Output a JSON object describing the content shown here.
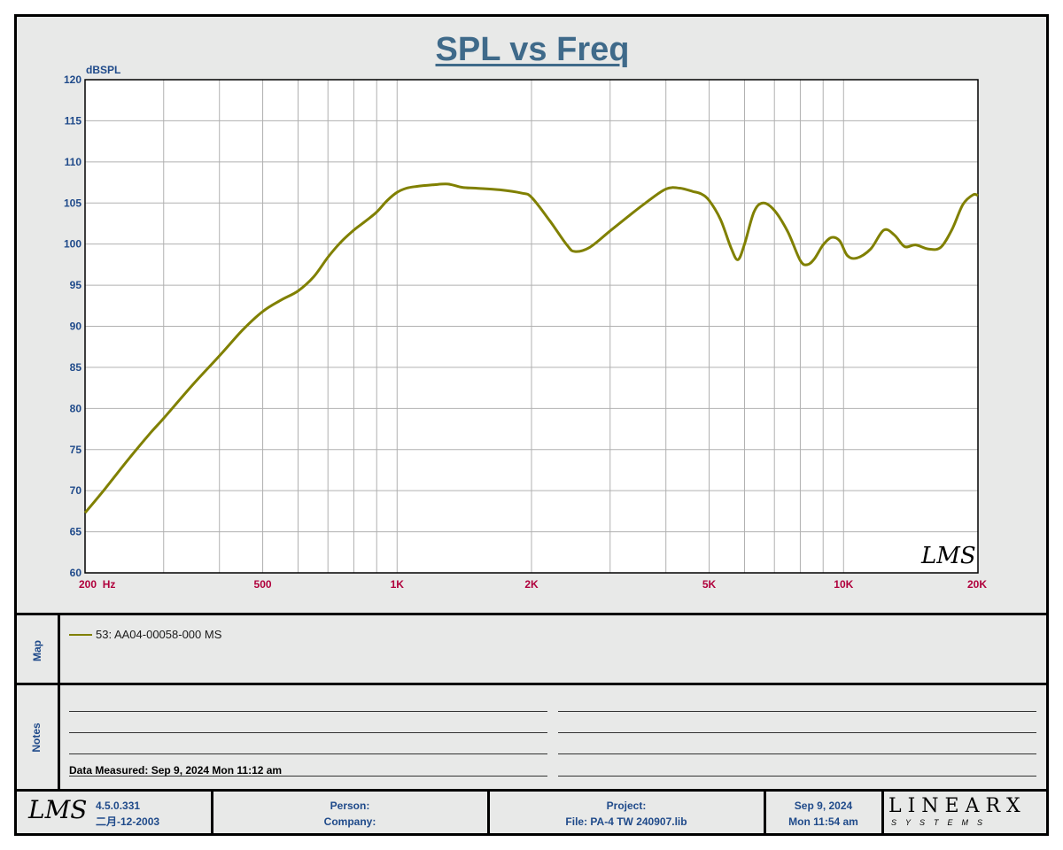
{
  "header": {
    "title": "SPL vs Freq"
  },
  "chart_data": {
    "type": "line",
    "title": "SPL vs Freq",
    "ylabel": "dBSPL",
    "xlabel": "",
    "x_scale": "log",
    "xlim": [
      200,
      20000
    ],
    "ylim": [
      60,
      120
    ],
    "grid": true,
    "x_ticks": [
      200,
      500,
      1000,
      2000,
      5000,
      10000,
      20000
    ],
    "x_tick_labels": [
      "200  Hz",
      "500",
      "1K",
      "2K",
      "5K",
      "10K",
      "20K"
    ],
    "y_ticks": [
      60,
      65,
      70,
      75,
      80,
      85,
      90,
      95,
      100,
      105,
      110,
      115,
      120
    ],
    "y_tick_labels": [
      "60",
      "65",
      "70",
      "75",
      "80",
      "85",
      "90",
      "95",
      "100",
      "105",
      "110",
      "115",
      "120"
    ],
    "watermark": "LMS",
    "series": [
      {
        "name": "53: AA04-00058-000  MS",
        "color": "#808000",
        "x": [
          200,
          220,
          250,
          280,
          300,
          350,
          400,
          450,
          500,
          550,
          600,
          650,
          700,
          750,
          800,
          850,
          900,
          950,
          1000,
          1050,
          1100,
          1200,
          1300,
          1400,
          1500,
          1700,
          1900,
          2000,
          2200,
          2400,
          2500,
          2700,
          3000,
          3300,
          3600,
          4000,
          4300,
          4600,
          4800,
          5000,
          5300,
          5600,
          5800,
          6000,
          6300,
          6600,
          7000,
          7500,
          8000,
          8300,
          8600,
          9000,
          9400,
          9800,
          10200,
          10700,
          11500,
          12300,
          13000,
          13700,
          14500,
          15500,
          16500,
          17500,
          18500,
          19500,
          20000
        ],
        "y": [
          67.3,
          70,
          73.8,
          77,
          78.8,
          83,
          86.4,
          89.5,
          91.8,
          93.2,
          94.3,
          96.0,
          98.4,
          100.3,
          101.7,
          102.8,
          103.9,
          105.3,
          106.3,
          106.8,
          107.0,
          107.2,
          107.3,
          106.9,
          106.8,
          106.6,
          106.2,
          105.7,
          102.8,
          99.9,
          99.1,
          99.6,
          101.6,
          103.4,
          105.0,
          106.7,
          106.8,
          106.4,
          106.1,
          105.3,
          103.0,
          99.5,
          98.1,
          100.0,
          103.9,
          105.0,
          104.1,
          101.5,
          98.0,
          97.5,
          98.2,
          99.9,
          100.8,
          100.4,
          98.6,
          98.3,
          99.4,
          101.7,
          101.1,
          99.7,
          99.9,
          99.4,
          99.6,
          101.8,
          104.8,
          106.0,
          105.9
        ]
      }
    ]
  },
  "map": {
    "label": "Map",
    "legend": "53: AA04-00058-000  MS"
  },
  "notes": {
    "label": "Notes",
    "measured": "Data Measured: Sep  9, 2024  Mon 11:12 am"
  },
  "footer": {
    "logo": "LMS",
    "version": "4.5.0.331",
    "version_date": "二月-12-2003",
    "person_label": "Person:",
    "company_label": "Company:",
    "project_label": "Project:",
    "file_label": "File: PA-4 TW  240907.lib",
    "date": "Sep  9, 2024",
    "time": "Mon 11:54 am",
    "brand": "LINEARX",
    "brand_sub": "SYSTEMS"
  }
}
